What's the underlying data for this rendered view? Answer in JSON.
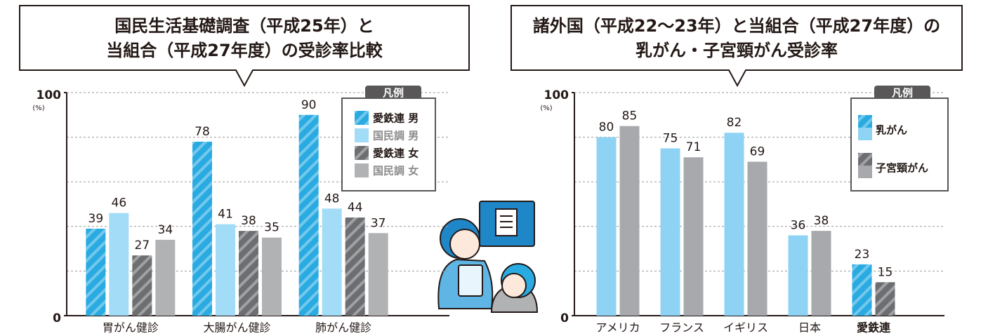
{
  "chart_data": [
    {
      "type": "bar",
      "title": [
        "国民生活基礎調査（平成25年）と",
        "当組合（平成27年度）の受診率比較"
      ],
      "legend_title": "凡例",
      "y_unit": "(%)",
      "categories": [
        "胃がん健診",
        "大腸がん健診",
        "肺がん健診"
      ],
      "series": [
        {
          "name": "愛鉄連 男",
          "color": "#29abe2",
          "hatched": true,
          "values": [
            39,
            78,
            90
          ]
        },
        {
          "name": "国民調 男",
          "color": "#a3dcf6",
          "hatched": false,
          "values": [
            46,
            41,
            48
          ]
        },
        {
          "name": "愛鉄連 女",
          "color": "#6d6e71",
          "hatched": true,
          "values": [
            27,
            38,
            44
          ]
        },
        {
          "name": "国民調 女",
          "color": "#b1b2b4",
          "hatched": false,
          "values": [
            34,
            35,
            37
          ]
        }
      ],
      "ylim": [
        0,
        100
      ],
      "yticks": [
        0,
        100
      ],
      "gridlines": [
        20,
        40,
        60,
        80,
        100
      ]
    },
    {
      "type": "bar",
      "title": [
        "諸外国（平成22〜23年）と当組合（平成27年度）の",
        "乳がん・子宮頸がん受診率"
      ],
      "legend_title": "凡例",
      "y_unit": "(%)",
      "categories": [
        "アメリカ",
        "フランス",
        "イギリス",
        "日本",
        "愛鉄連"
      ],
      "hatched_index": 4,
      "series": [
        {
          "name": "乳がん",
          "color": "#8fd3f4",
          "hatch_color": "#29abe2",
          "values": [
            80,
            75,
            82,
            36,
            23
          ]
        },
        {
          "name": "子宮頸がん",
          "color": "#a7a9ac",
          "hatch_color": "#6d6e71",
          "values": [
            85,
            71,
            69,
            38,
            15
          ]
        }
      ],
      "ylim": [
        0,
        100
      ],
      "yticks": [
        0,
        100
      ],
      "gridlines": [
        20,
        40,
        60,
        80,
        100
      ]
    }
  ]
}
